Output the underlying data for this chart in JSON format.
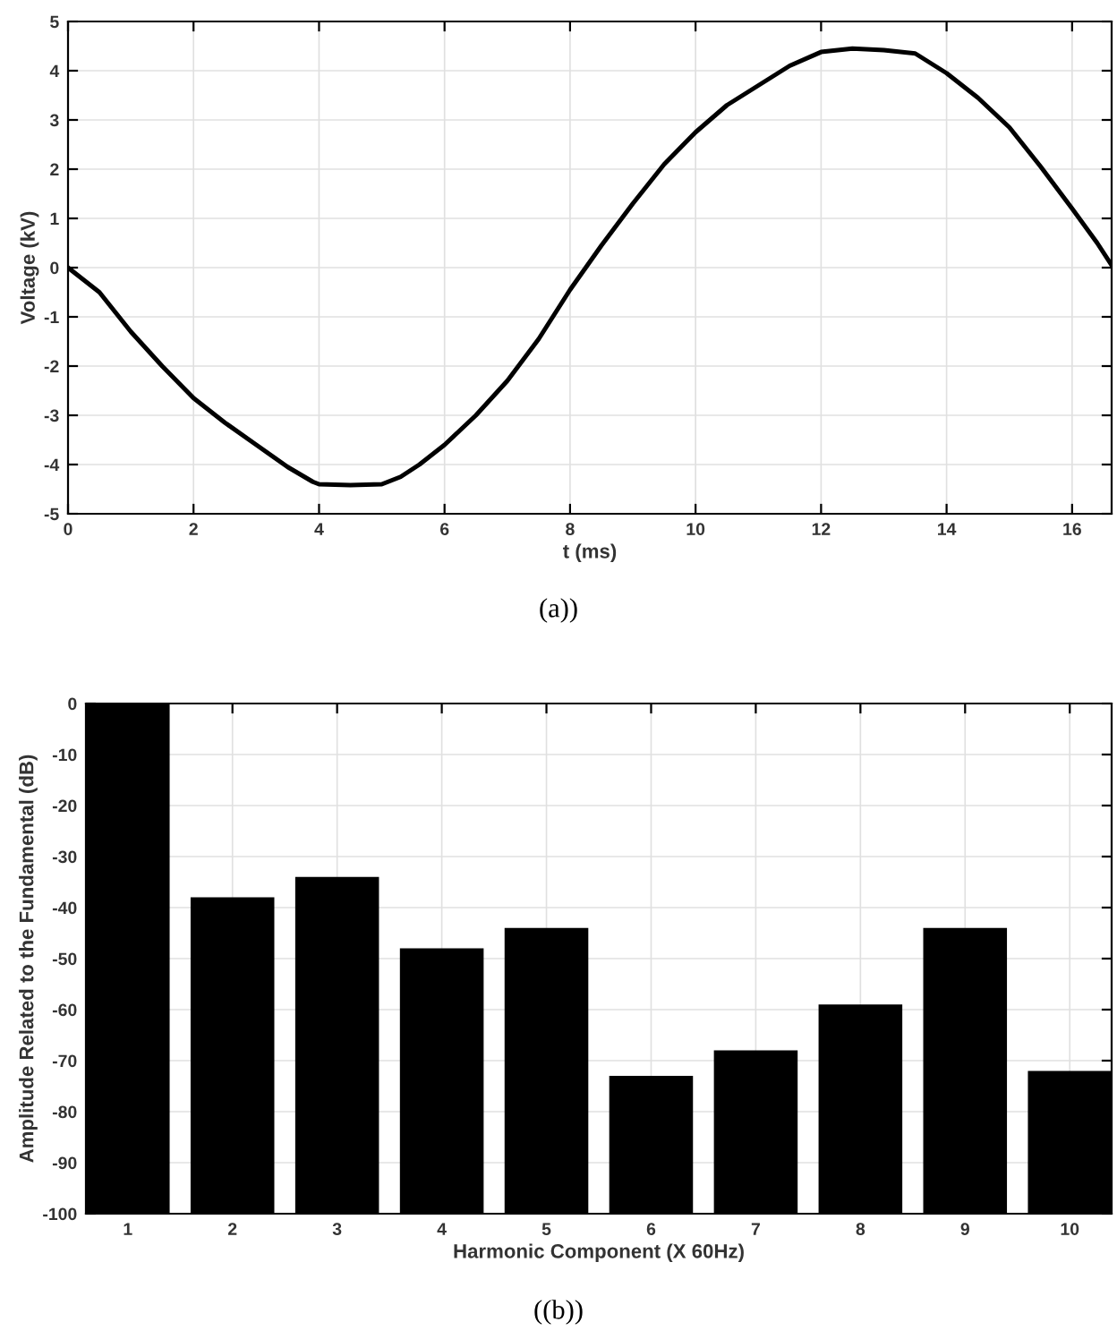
{
  "chart_data": [
    {
      "type": "line",
      "xlabel": "t (ms)",
      "ylabel": "Voltage (kV)",
      "annotations": [
        "(a))"
      ],
      "xlim": [
        0,
        16.63
      ],
      "xticks": [
        0,
        2,
        4,
        6,
        8,
        10,
        12,
        14,
        16
      ],
      "ylim": [
        -5,
        5
      ],
      "yticks": [
        -5,
        -4,
        -3,
        -2,
        -1,
        0,
        1,
        2,
        3,
        4,
        5
      ],
      "grid": true,
      "marker": "none",
      "line_style": "solid",
      "series": [
        {
          "color": "#000000",
          "x": [
            0,
            0.5,
            1,
            1.5,
            2,
            2.5,
            3,
            3.5,
            3.9,
            4,
            4.5,
            5,
            5.3,
            5.6,
            6,
            6.5,
            7,
            7.5,
            8,
            8.5,
            9,
            9.5,
            10,
            10.5,
            11,
            11.5,
            12,
            12.5,
            13,
            13.5,
            14,
            14.5,
            15,
            15.5,
            16,
            16.4,
            16.63
          ],
          "values": [
            0,
            -0.5,
            -1.3,
            -2.0,
            -2.65,
            -3.15,
            -3.6,
            -4.05,
            -4.35,
            -4.4,
            -4.42,
            -4.4,
            -4.25,
            -4.0,
            -3.6,
            -3.0,
            -2.3,
            -1.45,
            -0.45,
            0.45,
            1.3,
            2.1,
            2.75,
            3.3,
            3.7,
            4.1,
            4.38,
            4.45,
            4.42,
            4.35,
            3.95,
            3.45,
            2.85,
            2.05,
            1.2,
            0.5,
            0.05
          ]
        }
      ]
    },
    {
      "type": "bar",
      "xlabel": "Harmonic Component (X 60Hz)",
      "ylabel": "Amplitude Related to the Fundamental (dB)",
      "annotations": [
        "((b))"
      ],
      "categories": [
        "1",
        "2",
        "3",
        "4",
        "5",
        "6",
        "7",
        "8",
        "9",
        "10"
      ],
      "ylim": [
        -100,
        0
      ],
      "yticks": [
        -100,
        -90,
        -80,
        -70,
        -60,
        -50,
        -40,
        -30,
        -20,
        -10,
        0
      ],
      "grid": true,
      "base": [
        -100,
        -100,
        -100,
        -100,
        -100,
        -100,
        -100,
        -100,
        -100,
        -100
      ],
      "values": [
        100,
        62,
        66,
        52,
        56,
        27,
        32,
        41,
        56,
        28
      ],
      "color": "#000000"
    }
  ]
}
